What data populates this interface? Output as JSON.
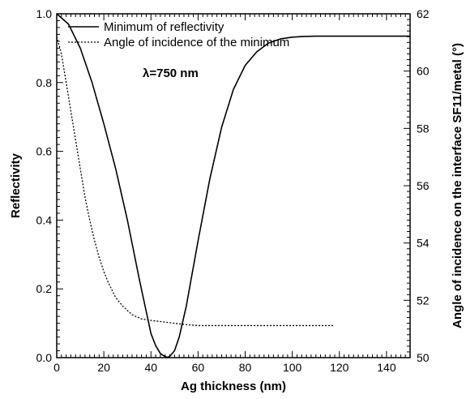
{
  "chart_data": {
    "type": "line",
    "xlabel": "Ag thickness (nm)",
    "ylabel": "Reflectivity",
    "y2label": "Angle of incidence on the interface SF11/metal (°)",
    "xlim": [
      0,
      150
    ],
    "ylim": [
      0,
      1.0
    ],
    "y2lim": [
      50,
      62
    ],
    "xticks": [
      0,
      20,
      40,
      60,
      80,
      100,
      120,
      140
    ],
    "yticks": [
      0.0,
      0.2,
      0.4,
      0.6,
      0.8,
      1.0
    ],
    "y2ticks": [
      50,
      52,
      54,
      56,
      58,
      60,
      62
    ],
    "xtick_labels": [
      "0",
      "20",
      "40",
      "60",
      "80",
      "100",
      "120",
      "140"
    ],
    "ytick_labels": [
      "0.0",
      "0.2",
      "0.4",
      "0.6",
      "0.8",
      "1.0"
    ],
    "y2tick_labels": [
      "50",
      "52",
      "54",
      "56",
      "58",
      "60",
      "62"
    ],
    "annotation": "λ=750 nm",
    "legend_position": "top-left",
    "grid": false,
    "series": [
      {
        "name": "Minimum of reflectivity",
        "axis": "left",
        "style": "solid",
        "x": [
          0,
          5,
          10,
          15,
          20,
          25,
          30,
          35,
          40,
          42,
          44,
          46,
          47,
          48,
          50,
          52,
          55,
          60,
          65,
          70,
          75,
          80,
          85,
          90,
          95,
          100,
          105,
          110,
          115,
          120,
          130,
          140,
          150
        ],
        "y": [
          1.0,
          0.97,
          0.9,
          0.8,
          0.68,
          0.55,
          0.4,
          0.23,
          0.07,
          0.035,
          0.012,
          0.003,
          0.001,
          0.004,
          0.02,
          0.06,
          0.15,
          0.34,
          0.52,
          0.67,
          0.78,
          0.85,
          0.89,
          0.915,
          0.927,
          0.932,
          0.934,
          0.935,
          0.935,
          0.935,
          0.935,
          0.935,
          0.935
        ]
      },
      {
        "name": "Angle of incidence of the minimum",
        "axis": "right",
        "style": "dotted",
        "x": [
          0,
          2,
          4,
          6,
          8,
          10,
          12,
          14,
          16,
          18,
          20,
          22,
          25,
          28,
          32,
          36,
          40,
          45,
          50,
          55,
          60,
          70,
          80,
          90,
          100,
          110,
          118
        ],
        "y": [
          61.2,
          60.6,
          59.6,
          58.6,
          57.6,
          56.6,
          55.6,
          54.8,
          54.1,
          53.5,
          53.0,
          52.6,
          52.1,
          51.8,
          51.5,
          51.35,
          51.3,
          51.25,
          51.2,
          51.15,
          51.12,
          51.12,
          51.12,
          51.12,
          51.12,
          51.12,
          51.12
        ]
      }
    ]
  }
}
